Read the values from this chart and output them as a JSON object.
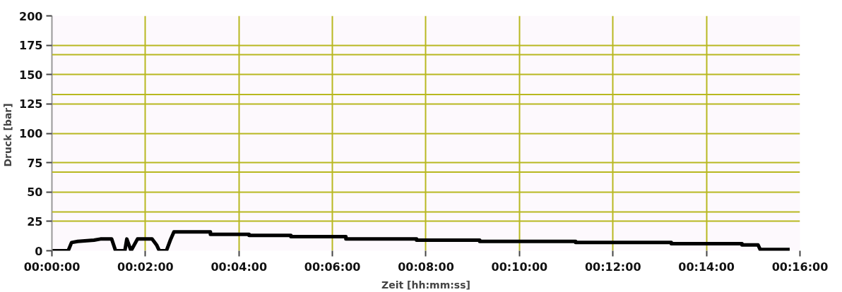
{
  "chart_data": {
    "type": "line",
    "xlabel": "Zeit [hh:mm:ss]",
    "ylabel": "Druck  [bar]",
    "x": [
      0,
      0.0058,
      0.007,
      0.0092,
      0.015,
      0.0173,
      0.0213,
      0.0227,
      0.026,
      0.0267,
      0.0282,
      0.0305,
      0.0357,
      0.0373,
      0.0383,
      0.0408,
      0.0422,
      0.0435,
      0.0565,
      0.0565,
      0.0703,
      0.0703,
      0.0852,
      0.0852,
      0.1048,
      0.1048,
      0.13,
      0.13,
      0.1525,
      0.1525,
      0.1867,
      0.1867,
      0.2208,
      0.2208,
      0.246,
      0.246,
      0.2517,
      0.2525,
      0.263
    ],
    "series": [
      {
        "color": "#000000",
        "values": [
          0,
          0,
          7,
          8,
          9,
          10,
          10,
          0,
          0,
          10,
          0,
          10,
          10,
          5,
          0,
          0,
          9,
          16,
          16,
          14,
          14,
          13,
          13,
          12,
          12,
          10,
          10,
          9,
          9,
          8,
          8,
          7,
          7,
          6,
          6,
          5,
          5,
          1,
          1
        ]
      }
    ],
    "xlim": [
      0,
      0.266667
    ],
    "ylim": [
      0,
      200
    ],
    "xticks": [
      {
        "value": 0,
        "label": "00:00:00"
      },
      {
        "value": 0.033333,
        "label": "00:02:00"
      },
      {
        "value": 0.066667,
        "label": "00:04:00"
      },
      {
        "value": 0.1,
        "label": "00:06:00"
      },
      {
        "value": 0.133333,
        "label": "00:08:00"
      },
      {
        "value": 0.166667,
        "label": "00:10:00"
      },
      {
        "value": 0.2,
        "label": "00:12:00"
      },
      {
        "value": 0.233333,
        "label": "00:14:00"
      },
      {
        "value": 0.266667,
        "label": "00:16:00"
      }
    ],
    "yticks": [
      0,
      25,
      50,
      75,
      100,
      125,
      150,
      175,
      200
    ],
    "ref_lines": [
      {
        "axis": "y",
        "value": 33,
        "color": "#b8b820"
      },
      {
        "axis": "y",
        "value": 67,
        "color": "#b8b820"
      },
      {
        "axis": "y",
        "value": 133,
        "color": "#b8b820"
      },
      {
        "axis": "y",
        "value": 167,
        "color": "#b8b820"
      }
    ],
    "grid": true,
    "line_style": "solid",
    "marker": "none"
  }
}
